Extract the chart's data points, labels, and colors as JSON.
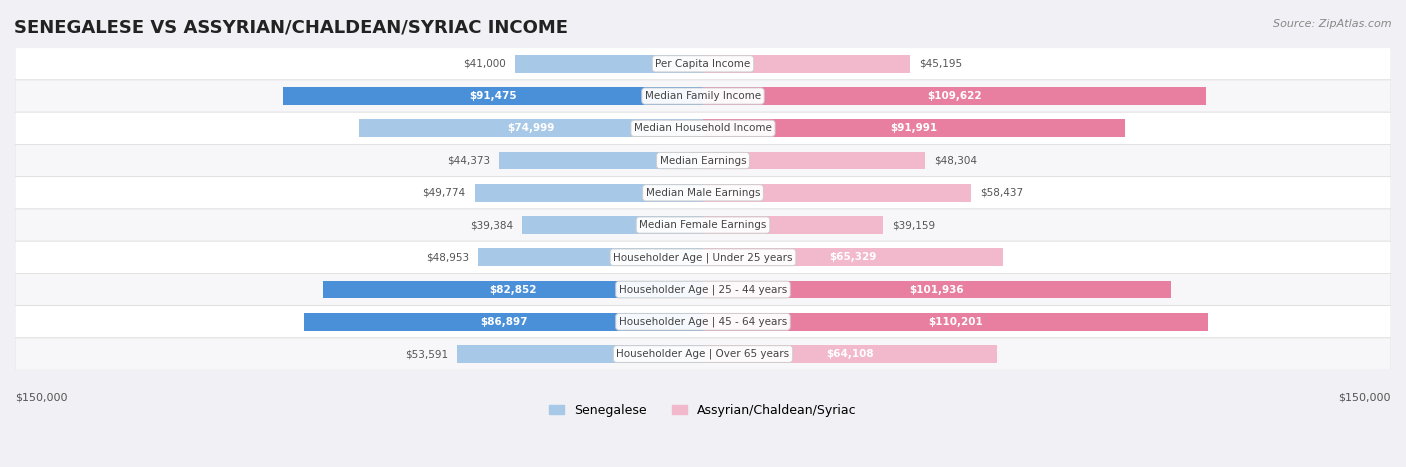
{
  "title": "SENEGALESE VS ASSYRIAN/CHALDEAN/SYRIAC INCOME",
  "source": "Source: ZipAtlas.com",
  "categories": [
    "Per Capita Income",
    "Median Family Income",
    "Median Household Income",
    "Median Earnings",
    "Median Male Earnings",
    "Median Female Earnings",
    "Householder Age | Under 25 years",
    "Householder Age | 25 - 44 years",
    "Householder Age | 45 - 64 years",
    "Householder Age | Over 65 years"
  ],
  "senegalese_values": [
    41000,
    91475,
    74999,
    44373,
    49774,
    39384,
    48953,
    82852,
    86897,
    53591
  ],
  "assyrian_values": [
    45195,
    109622,
    91991,
    48304,
    58437,
    39159,
    65329,
    101936,
    110201,
    64108
  ],
  "senegalese_labels": [
    "$41,000",
    "$91,475",
    "$74,999",
    "$44,373",
    "$49,774",
    "$39,384",
    "$48,953",
    "$82,852",
    "$86,897",
    "$53,591"
  ],
  "assyrian_labels": [
    "$45,195",
    "$109,622",
    "$91,991",
    "$48,304",
    "$58,437",
    "$39,159",
    "$65,329",
    "$101,936",
    "$110,201",
    "$64,108"
  ],
  "max_value": 150000,
  "axis_label": "$150,000",
  "senegalese_color_strong": "#4a90d9",
  "senegalese_color_light": "#a8c8e8",
  "assyrian_color_strong": "#e87fa0",
  "assyrian_color_light": "#f2b8cb",
  "bg_color": "#f0f0f5",
  "row_bg": "#f7f7fa",
  "legend_senegalese": "Senegalese",
  "legend_assyrian": "Assyrian/Chaldean/Syriac",
  "title_fontsize": 13,
  "label_fontsize": 8.5,
  "bar_height": 0.55
}
